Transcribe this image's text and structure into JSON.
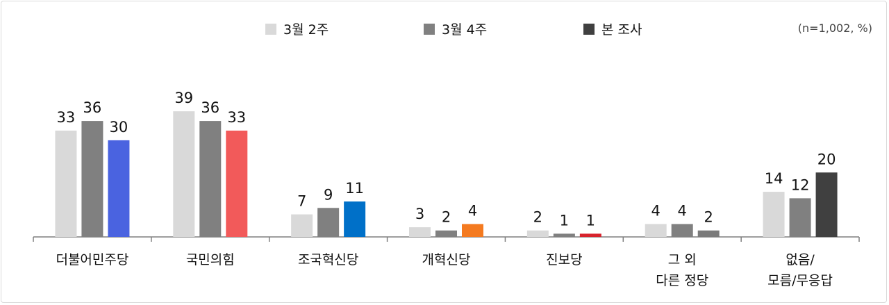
{
  "chart_data": {
    "type": "bar",
    "note": "(n=1,002, %)",
    "categories": [
      [
        "더불어민주당"
      ],
      [
        "국민의힘"
      ],
      [
        "조국혁신당"
      ],
      [
        "개혁신당"
      ],
      [
        "진보당"
      ],
      [
        "그 외",
        "다른 정당"
      ],
      [
        "없음/",
        "모름/무응답"
      ]
    ],
    "series": [
      {
        "name": "3월 2주",
        "color": "#d9d9d9",
        "values": [
          33,
          39,
          7,
          3,
          2,
          4,
          14
        ]
      },
      {
        "name": "3월 4주",
        "color": "#808080",
        "values": [
          36,
          36,
          9,
          2,
          1,
          4,
          12
        ]
      },
      {
        "name": "본 조사",
        "color": "#404040",
        "values": [
          30,
          33,
          11,
          4,
          1,
          2,
          20
        ]
      }
    ],
    "current_colors": [
      "#4a63e0",
      "#f25a5a",
      "#0070c8",
      "#f47a20",
      "#d7232d",
      "#7a7a7a",
      "#404040"
    ],
    "ylim": [
      0,
      45
    ],
    "grid": false,
    "legend_position": "top-center"
  }
}
